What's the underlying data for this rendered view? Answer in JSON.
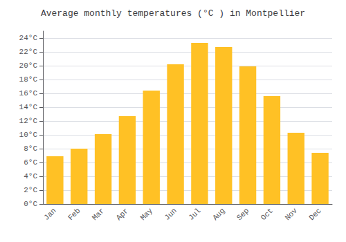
{
  "chart_data": {
    "type": "bar",
    "title": "Average monthly temperatures (°C ) in Montpellier",
    "categories": [
      "Jan",
      "Feb",
      "Mar",
      "Apr",
      "May",
      "Jun",
      "Jul",
      "Aug",
      "Sep",
      "Oct",
      "Nov",
      "Dec"
    ],
    "values": [
      6.9,
      8.0,
      10.1,
      12.7,
      16.4,
      20.2,
      23.3,
      22.7,
      19.9,
      15.6,
      10.3,
      7.4
    ],
    "color": "#FFC125",
    "ylim": [
      0,
      25
    ],
    "yticks": [
      {
        "value": 0,
        "label": "0°C"
      },
      {
        "value": 2,
        "label": "2°C"
      },
      {
        "value": 4,
        "label": "4°C"
      },
      {
        "value": 6,
        "label": "6°C"
      },
      {
        "value": 8,
        "label": "8°C"
      },
      {
        "value": 10,
        "label": "10°C"
      },
      {
        "value": 12,
        "label": "12°C"
      },
      {
        "value": 14,
        "label": "14°C"
      },
      {
        "value": 16,
        "label": "16°C"
      },
      {
        "value": 18,
        "label": "18°C"
      },
      {
        "value": 20,
        "label": "20°C"
      },
      {
        "value": 22,
        "label": "22°C"
      },
      {
        "value": 24,
        "label": "24°C"
      }
    ],
    "grid": true
  }
}
